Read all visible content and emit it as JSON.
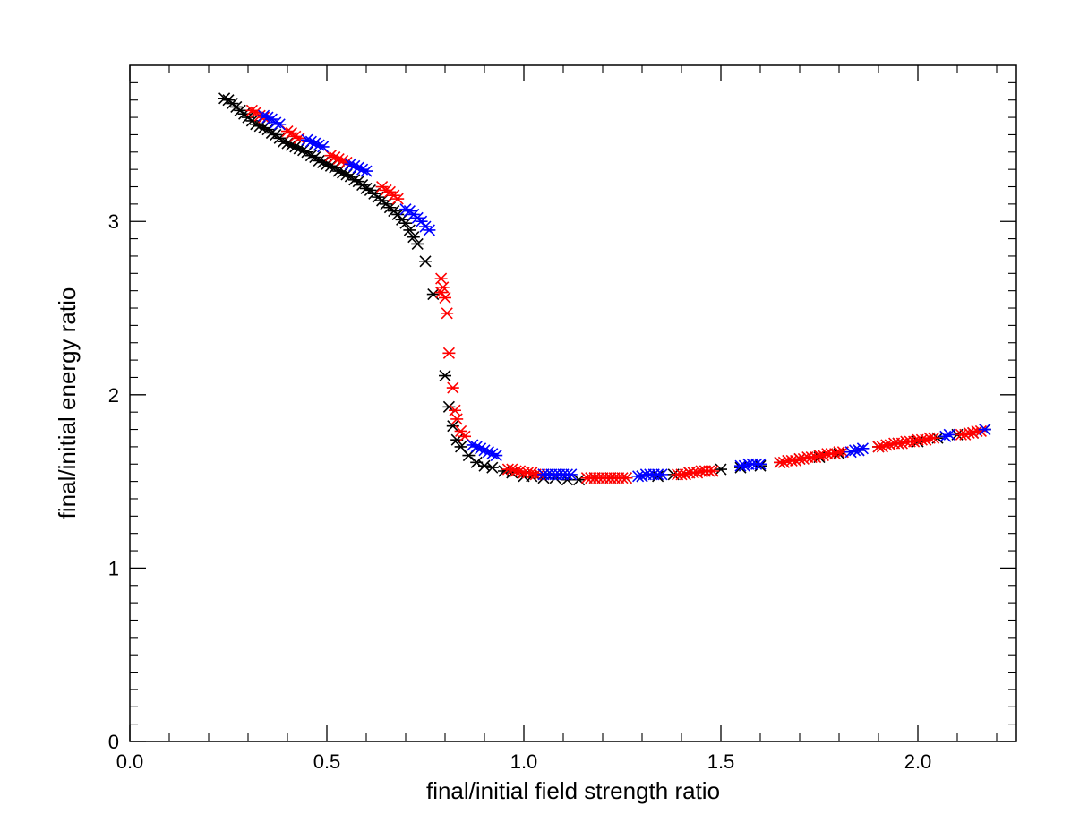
{
  "chart_data": {
    "type": "scatter",
    "title": "",
    "xlabel": "final/initial field strength ratio",
    "ylabel": "final/initial energy ratio",
    "xlim": [
      0.0,
      2.25
    ],
    "ylim": [
      0,
      3.9
    ],
    "xticks": [
      0.0,
      0.5,
      1.0,
      1.5,
      2.0
    ],
    "xtick_labels": [
      "0.0",
      "0.5",
      "1.0",
      "1.5",
      "2.0"
    ],
    "yticks": [
      0,
      1,
      2,
      3
    ],
    "ytick_labels": [
      "0",
      "1",
      "2",
      "3"
    ],
    "grid": false,
    "marker": "asterisk",
    "series": [
      {
        "name": "black",
        "color": "#000000",
        "points": [
          [
            0.24,
            3.71
          ],
          [
            0.25,
            3.7
          ],
          [
            0.26,
            3.68
          ],
          [
            0.27,
            3.66
          ],
          [
            0.28,
            3.64
          ],
          [
            0.29,
            3.62
          ],
          [
            0.3,
            3.6
          ],
          [
            0.31,
            3.58
          ],
          [
            0.32,
            3.56
          ],
          [
            0.33,
            3.55
          ],
          [
            0.34,
            3.54
          ],
          [
            0.35,
            3.53
          ],
          [
            0.36,
            3.51
          ],
          [
            0.37,
            3.5
          ],
          [
            0.38,
            3.48
          ],
          [
            0.39,
            3.46
          ],
          [
            0.4,
            3.45
          ],
          [
            0.41,
            3.44
          ],
          [
            0.42,
            3.43
          ],
          [
            0.43,
            3.42
          ],
          [
            0.44,
            3.41
          ],
          [
            0.45,
            3.4
          ],
          [
            0.46,
            3.38
          ],
          [
            0.47,
            3.37
          ],
          [
            0.48,
            3.35
          ],
          [
            0.49,
            3.34
          ],
          [
            0.5,
            3.33
          ],
          [
            0.51,
            3.32
          ],
          [
            0.52,
            3.31
          ],
          [
            0.53,
            3.29
          ],
          [
            0.54,
            3.28
          ],
          [
            0.55,
            3.27
          ],
          [
            0.56,
            3.26
          ],
          [
            0.57,
            3.24
          ],
          [
            0.58,
            3.23
          ],
          [
            0.59,
            3.21
          ],
          [
            0.6,
            3.19
          ],
          [
            0.61,
            3.18
          ],
          [
            0.62,
            3.16
          ],
          [
            0.63,
            3.14
          ],
          [
            0.64,
            3.12
          ],
          [
            0.65,
            3.1
          ],
          [
            0.66,
            3.08
          ],
          [
            0.67,
            3.06
          ],
          [
            0.68,
            3.04
          ],
          [
            0.69,
            3.01
          ],
          [
            0.7,
            2.99
          ],
          [
            0.71,
            2.95
          ],
          [
            0.72,
            2.91
          ],
          [
            0.73,
            2.87
          ],
          [
            0.75,
            2.77
          ],
          [
            0.77,
            2.58
          ],
          [
            0.8,
            2.11
          ],
          [
            0.81,
            1.93
          ],
          [
            0.82,
            1.82
          ],
          [
            0.83,
            1.74
          ],
          [
            0.84,
            1.7
          ],
          [
            0.86,
            1.65
          ],
          [
            0.88,
            1.61
          ],
          [
            0.9,
            1.59
          ],
          [
            0.92,
            1.58
          ],
          [
            0.95,
            1.56
          ],
          [
            0.97,
            1.55
          ],
          [
            1.0,
            1.53
          ],
          [
            1.02,
            1.53
          ],
          [
            1.05,
            1.52
          ],
          [
            1.08,
            1.52
          ],
          [
            1.11,
            1.51
          ],
          [
            1.14,
            1.51
          ],
          [
            1.18,
            1.52
          ],
          [
            1.22,
            1.52
          ],
          [
            1.26,
            1.52
          ],
          [
            1.3,
            1.53
          ],
          [
            1.34,
            1.53
          ],
          [
            1.38,
            1.54
          ],
          [
            1.42,
            1.55
          ],
          [
            1.46,
            1.56
          ],
          [
            1.5,
            1.57
          ],
          [
            1.55,
            1.58
          ],
          [
            1.6,
            1.59
          ],
          [
            1.65,
            1.61
          ],
          [
            1.7,
            1.63
          ],
          [
            1.75,
            1.64
          ],
          [
            1.8,
            1.66
          ],
          [
            1.85,
            1.68
          ],
          [
            1.9,
            1.7
          ],
          [
            1.95,
            1.72
          ],
          [
            2.0,
            1.73
          ],
          [
            2.05,
            1.75
          ],
          [
            2.1,
            1.77
          ],
          [
            2.14,
            1.78
          ],
          [
            2.17,
            1.8
          ]
        ]
      },
      {
        "name": "red",
        "color": "#ff0000",
        "points": [
          [
            0.31,
            3.64
          ],
          [
            0.32,
            3.63
          ],
          [
            0.33,
            3.61
          ],
          [
            0.34,
            3.6
          ],
          [
            0.4,
            3.52
          ],
          [
            0.41,
            3.51
          ],
          [
            0.42,
            3.49
          ],
          [
            0.43,
            3.48
          ],
          [
            0.51,
            3.38
          ],
          [
            0.52,
            3.37
          ],
          [
            0.53,
            3.36
          ],
          [
            0.54,
            3.35
          ],
          [
            0.55,
            3.34
          ],
          [
            0.64,
            3.2
          ],
          [
            0.65,
            3.18
          ],
          [
            0.66,
            3.17
          ],
          [
            0.67,
            3.15
          ],
          [
            0.68,
            3.13
          ],
          [
            0.79,
            2.67
          ],
          [
            0.795,
            2.62
          ],
          [
            0.79,
            2.59
          ],
          [
            0.8,
            2.56
          ],
          [
            0.805,
            2.47
          ],
          [
            0.81,
            2.24
          ],
          [
            0.82,
            2.04
          ],
          [
            0.825,
            1.91
          ],
          [
            0.83,
            1.86
          ],
          [
            0.84,
            1.79
          ],
          [
            0.85,
            1.76
          ],
          [
            0.96,
            1.57
          ],
          [
            0.97,
            1.57
          ],
          [
            0.98,
            1.56
          ],
          [
            0.99,
            1.56
          ],
          [
            1.0,
            1.55
          ],
          [
            1.01,
            1.55
          ],
          [
            1.02,
            1.55
          ],
          [
            1.03,
            1.54
          ],
          [
            1.04,
            1.54
          ],
          [
            1.05,
            1.54
          ],
          [
            1.16,
            1.52
          ],
          [
            1.17,
            1.52
          ],
          [
            1.18,
            1.52
          ],
          [
            1.19,
            1.52
          ],
          [
            1.2,
            1.52
          ],
          [
            1.21,
            1.52
          ],
          [
            1.22,
            1.52
          ],
          [
            1.23,
            1.52
          ],
          [
            1.24,
            1.52
          ],
          [
            1.25,
            1.52
          ],
          [
            1.26,
            1.52
          ],
          [
            1.39,
            1.54
          ],
          [
            1.4,
            1.54
          ],
          [
            1.41,
            1.54
          ],
          [
            1.42,
            1.55
          ],
          [
            1.43,
            1.55
          ],
          [
            1.44,
            1.55
          ],
          [
            1.45,
            1.56
          ],
          [
            1.46,
            1.56
          ],
          [
            1.47,
            1.56
          ],
          [
            1.48,
            1.56
          ],
          [
            1.65,
            1.61
          ],
          [
            1.66,
            1.61
          ],
          [
            1.67,
            1.62
          ],
          [
            1.68,
            1.62
          ],
          [
            1.69,
            1.62
          ],
          [
            1.7,
            1.63
          ],
          [
            1.71,
            1.63
          ],
          [
            1.72,
            1.64
          ],
          [
            1.73,
            1.64
          ],
          [
            1.74,
            1.64
          ],
          [
            1.75,
            1.65
          ],
          [
            1.76,
            1.65
          ],
          [
            1.77,
            1.66
          ],
          [
            1.78,
            1.66
          ],
          [
            1.79,
            1.66
          ],
          [
            1.8,
            1.67
          ],
          [
            1.81,
            1.67
          ],
          [
            1.9,
            1.7
          ],
          [
            1.91,
            1.7
          ],
          [
            1.92,
            1.71
          ],
          [
            1.93,
            1.71
          ],
          [
            1.94,
            1.72
          ],
          [
            1.95,
            1.72
          ],
          [
            1.96,
            1.72
          ],
          [
            1.97,
            1.73
          ],
          [
            1.98,
            1.73
          ],
          [
            1.99,
            1.73
          ],
          [
            2.0,
            1.74
          ],
          [
            2.01,
            1.74
          ],
          [
            2.02,
            1.74
          ],
          [
            2.03,
            1.75
          ],
          [
            2.04,
            1.75
          ],
          [
            2.11,
            1.77
          ],
          [
            2.12,
            1.77
          ],
          [
            2.13,
            1.78
          ],
          [
            2.14,
            1.78
          ],
          [
            2.15,
            1.79
          ],
          [
            2.16,
            1.79
          ]
        ]
      },
      {
        "name": "blue",
        "color": "#0000ff",
        "points": [
          [
            0.34,
            3.61
          ],
          [
            0.35,
            3.6
          ],
          [
            0.36,
            3.59
          ],
          [
            0.37,
            3.57
          ],
          [
            0.38,
            3.56
          ],
          [
            0.45,
            3.47
          ],
          [
            0.46,
            3.46
          ],
          [
            0.47,
            3.45
          ],
          [
            0.48,
            3.44
          ],
          [
            0.49,
            3.43
          ],
          [
            0.56,
            3.33
          ],
          [
            0.57,
            3.32
          ],
          [
            0.58,
            3.31
          ],
          [
            0.59,
            3.3
          ],
          [
            0.6,
            3.29
          ],
          [
            0.7,
            3.07
          ],
          [
            0.71,
            3.06
          ],
          [
            0.72,
            3.04
          ],
          [
            0.73,
            3.02
          ],
          [
            0.74,
            3.0
          ],
          [
            0.75,
            2.97
          ],
          [
            0.76,
            2.95
          ],
          [
            0.87,
            1.71
          ],
          [
            0.88,
            1.7
          ],
          [
            0.89,
            1.69
          ],
          [
            0.9,
            1.68
          ],
          [
            0.91,
            1.67
          ],
          [
            0.92,
            1.66
          ],
          [
            0.93,
            1.65
          ],
          [
            1.05,
            1.54
          ],
          [
            1.06,
            1.54
          ],
          [
            1.07,
            1.54
          ],
          [
            1.08,
            1.54
          ],
          [
            1.09,
            1.54
          ],
          [
            1.1,
            1.54
          ],
          [
            1.11,
            1.54
          ],
          [
            1.12,
            1.54
          ],
          [
            1.29,
            1.53
          ],
          [
            1.3,
            1.53
          ],
          [
            1.31,
            1.54
          ],
          [
            1.32,
            1.54
          ],
          [
            1.33,
            1.54
          ],
          [
            1.34,
            1.54
          ],
          [
            1.35,
            1.54
          ],
          [
            1.55,
            1.59
          ],
          [
            1.56,
            1.59
          ],
          [
            1.57,
            1.6
          ],
          [
            1.58,
            1.6
          ],
          [
            1.59,
            1.6
          ],
          [
            1.6,
            1.6
          ],
          [
            1.83,
            1.67
          ],
          [
            1.84,
            1.68
          ],
          [
            1.85,
            1.68
          ],
          [
            1.86,
            1.69
          ],
          [
            2.07,
            1.76
          ],
          [
            2.08,
            1.77
          ],
          [
            2.17,
            1.8
          ]
        ]
      }
    ]
  }
}
